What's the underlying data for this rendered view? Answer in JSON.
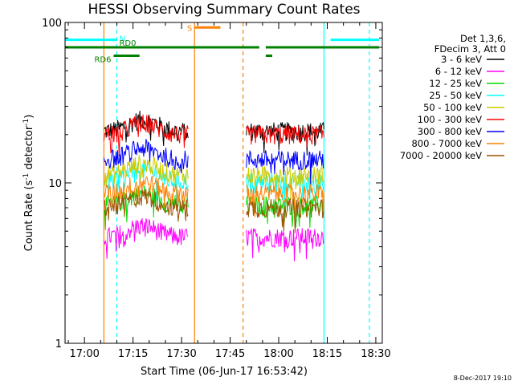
{
  "chart_data": {
    "type": "line",
    "title": "HESSI Observing Summary Count Rates",
    "xlabel": "Start Time (06-Jun-17 16:53:42)",
    "ylabel_main": "Count Rate (s",
    "ylabel_sup": "-1",
    "ylabel_tail": " detector",
    "ylabel_end": ")",
    "y_scale": "log",
    "ylim": [
      1,
      100
    ],
    "xlim": [
      "16:54",
      "18:32"
    ],
    "x_ticks": [
      "17:00",
      "17:15",
      "17:30",
      "17:45",
      "18:00",
      "18:15",
      "18:30"
    ],
    "y_ticks": [
      "1",
      "10",
      "100"
    ],
    "grid": false,
    "legend": {
      "placement": "right",
      "header": [
        "Det 1,3,6,",
        "FDecim 3, Att 0"
      ],
      "entries": [
        {
          "label": "3 - 6 keV",
          "color": "#000000"
        },
        {
          "label": "6 - 12 keV",
          "color": "#ff00ff"
        },
        {
          "label": "12 - 25 keV",
          "color": "#00dd00"
        },
        {
          "label": "25 - 50 keV",
          "color": "#00ffff"
        },
        {
          "label": "50 - 100 keV",
          "color": "#cccc00"
        },
        {
          "label": "100 - 300 keV",
          "color": "#ff0000"
        },
        {
          "label": "300 - 800 keV",
          "color": "#0000ff"
        },
        {
          "label": "800 - 7000 keV",
          "color": "#ff8000"
        },
        {
          "label": "7000 - 20000 keV",
          "color": "#a05000"
        }
      ]
    },
    "segments": [
      {
        "start": "17:06",
        "end": "17:32"
      },
      {
        "start": "17:50",
        "end": "18:14"
      }
    ],
    "series": [
      {
        "label": "3 - 6 keV",
        "color": "#000000",
        "level": 21
      },
      {
        "label": "6 - 12 keV",
        "color": "#ff00ff",
        "level": 4.6
      },
      {
        "label": "12 - 25 keV",
        "color": "#00dd00",
        "level": 7.3
      },
      {
        "label": "25 - 50 keV",
        "color": "#00ffff",
        "level": 10.2
      },
      {
        "label": "50 - 100 keV",
        "color": "#cccc00",
        "level": 11.2
      },
      {
        "label": "100 - 300 keV",
        "color": "#ff0000",
        "level": 20
      },
      {
        "label": "300 - 800 keV",
        "color": "#0000ff",
        "level": 14
      },
      {
        "label": "800 - 7000 keV",
        "color": "#ff8000",
        "level": 8.6
      },
      {
        "label": "7000 - 20000 keV",
        "color": "#a05000",
        "level": 7
      }
    ],
    "flag_bars": [
      {
        "label": "N",
        "color": "#00ffff",
        "y": 78,
        "ranges": [
          [
            "16:54",
            "17:10"
          ],
          [
            "18:16",
            "18:31"
          ]
        ]
      },
      {
        "label": "S",
        "color": "#ff8000",
        "y": 93,
        "ranges": [
          [
            "17:34",
            "17:42"
          ]
        ]
      },
      {
        "label": "RD0",
        "color": "#008000",
        "y": 70,
        "ranges": [
          [
            "16:54",
            "17:54"
          ],
          [
            "17:56",
            "18:31"
          ]
        ]
      },
      {
        "label": "RD6",
        "color": "#008000",
        "y": 62,
        "ranges": [
          [
            "17:09",
            "17:17"
          ],
          [
            "17:56",
            "17:58"
          ]
        ]
      }
    ],
    "vlines": [
      {
        "time": "16:54",
        "color": "#00ffff",
        "style": "solid"
      },
      {
        "time": "17:06",
        "color": "#ff8000",
        "style": "solid"
      },
      {
        "time": "17:10",
        "color": "#00ffff",
        "style": "dashed"
      },
      {
        "time": "17:34",
        "color": "#ff8000",
        "style": "solid"
      },
      {
        "time": "17:49",
        "color": "#ff8000",
        "style": "dashed"
      },
      {
        "time": "18:14",
        "color": "#00ffff",
        "style": "solid"
      },
      {
        "time": "18:28",
        "color": "#00ffff",
        "style": "dashed"
      }
    ]
  },
  "timestamp": "8-Dec-2017 19:10"
}
